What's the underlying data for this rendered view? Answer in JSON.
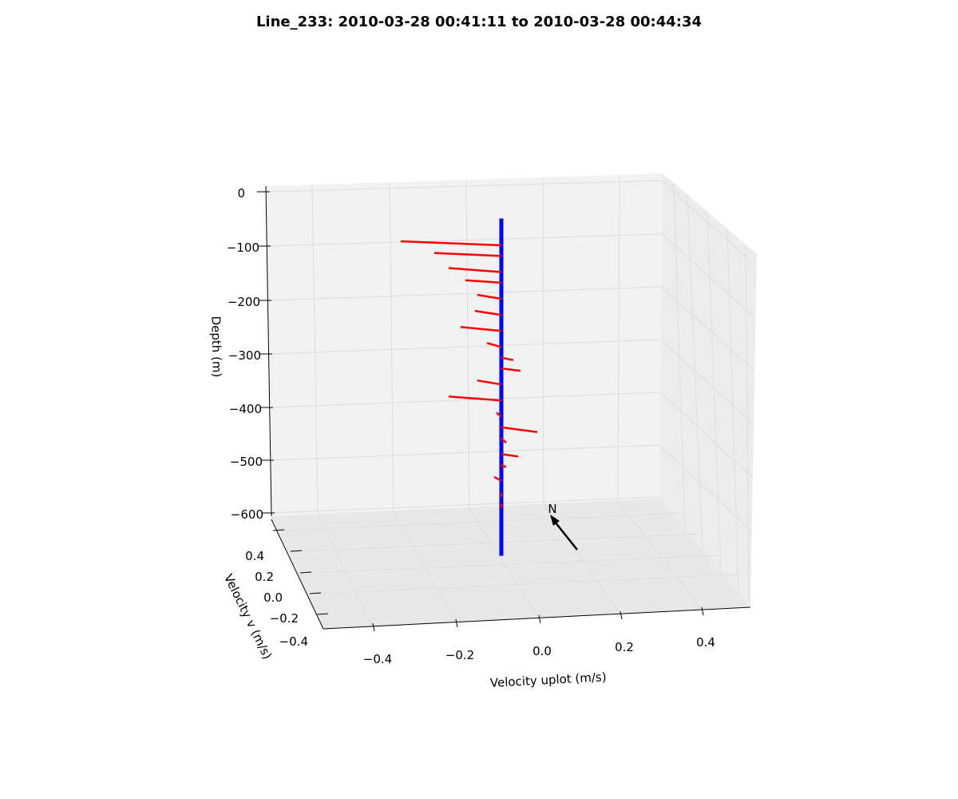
{
  "chart_data": {
    "type": "line",
    "title": "Line_233: 2010-03-28 00:41:11 to 2010-03-28 00:44:34",
    "xlabel": "Velocity uplot (m/s)",
    "ylabel": "Velocity v (m/s)",
    "zlabel": "Depth (m)",
    "xlim": [
      -0.5,
      0.5
    ],
    "ylim": [
      -0.5,
      0.5
    ],
    "zlim": [
      -650,
      0
    ],
    "x_ticks": [
      "−0.4",
      "−0.2",
      "0.0",
      "0.2",
      "0.4"
    ],
    "y_ticks": [
      "−0.4",
      "−0.2",
      "0.0",
      "0.2",
      "0.4"
    ],
    "z_ticks": [
      "0",
      "−100",
      "−200",
      "−300",
      "−400",
      "−500",
      "−600"
    ],
    "grid": true,
    "north_arrow_label": "N",
    "colors": {
      "profile": "#0000ff",
      "vectors": "#ff0000",
      "north_arrow": "#000000"
    },
    "profile_line": {
      "x": -0.1,
      "y": 0.0,
      "depth_top": -50,
      "depth_bottom": -680
    },
    "series": [
      {
        "name": "",
        "depth": [
          -100,
          -120,
          -150,
          -170,
          -200,
          -230,
          -260,
          -290,
          -310,
          -330,
          -360,
          -390,
          -420,
          -440,
          -460,
          -490,
          -510,
          -540,
          -570,
          -590
        ],
        "u": [
          -0.42,
          -0.28,
          -0.22,
          -0.15,
          -0.1,
          -0.11,
          -0.17,
          -0.06,
          0.05,
          0.08,
          -0.1,
          -0.22,
          -0.02,
          0.15,
          0.02,
          0.07,
          0.02,
          -0.03,
          0.0,
          0.0
        ],
        "v": [
          0.0,
          0.02,
          0.0,
          0.03,
          0.0,
          0.0,
          0.0,
          0.0,
          0.0,
          0.0,
          0.0,
          0.0,
          0.0,
          0.05,
          0.05,
          0.0,
          0.0,
          0.0,
          0.0,
          0.0
        ]
      }
    ]
  }
}
